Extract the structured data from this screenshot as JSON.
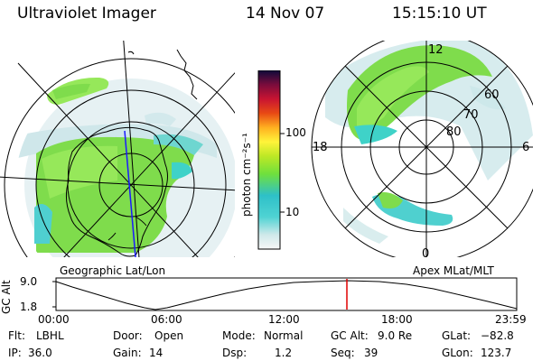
{
  "header": {
    "title": "Ultraviolet Imager",
    "date": "14 Nov 07",
    "time": "15:15:10 UT"
  },
  "left_map": {
    "caption": "Geographic Lat/Lon"
  },
  "right_map": {
    "caption": "Apex MLat/MLT",
    "lat_labels": [
      "80",
      "70",
      "60"
    ],
    "mlt_labels": {
      "top": "12",
      "bottom": "0",
      "left": "18",
      "right": "6"
    }
  },
  "colorbar": {
    "label": "photon cm⁻²s⁻¹",
    "ticks": [
      "100",
      "10"
    ]
  },
  "altitude_plot": {
    "ylabel": "GC Alt",
    "y_ticks": [
      "9.0",
      "1.8"
    ],
    "x_ticks": [
      "00:00",
      "06:00",
      "12:00",
      "18:00",
      "23:59"
    ],
    "marker_color": "#e00000"
  },
  "info": {
    "flt": {
      "label": "Flt:",
      "value": "LBHL"
    },
    "ip": {
      "label": "IP:",
      "value": "36.0"
    },
    "door": {
      "label": "Door:",
      "value": "Open"
    },
    "gain": {
      "label": "Gain:",
      "value": "14"
    },
    "mode": {
      "label": "Mode:",
      "value": "Normal"
    },
    "dsp": {
      "label": "Dsp:",
      "value": "1.2"
    },
    "gc_alt": {
      "label": "GC Alt:",
      "value": "9.0 Re"
    },
    "seq": {
      "label": "Seq:",
      "value": "39"
    },
    "glat": {
      "label": "GLat:",
      "value": "−82.8"
    },
    "glon": {
      "label": "GLon:",
      "value": "123.7"
    }
  }
}
